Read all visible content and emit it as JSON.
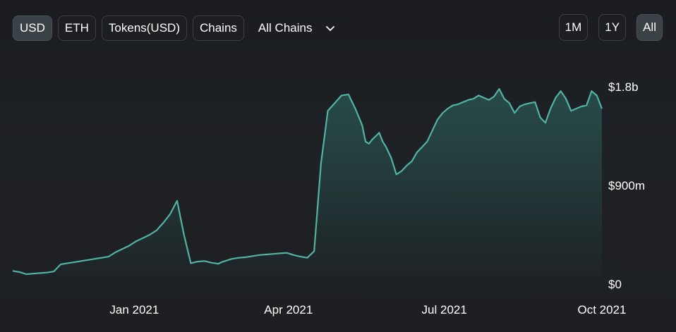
{
  "controls": {
    "currency_tabs": [
      {
        "label": "USD",
        "active": true
      },
      {
        "label": "ETH",
        "active": false
      },
      {
        "label": "Tokens(USD)",
        "active": false
      },
      {
        "label": "Chains",
        "active": false
      }
    ],
    "chain_select": {
      "selected": "All Chains",
      "icon": "chevron-down-icon"
    },
    "range_tabs": [
      {
        "label": "1M",
        "active": false
      },
      {
        "label": "1Y",
        "active": false
      },
      {
        "label": "All",
        "active": true
      }
    ]
  },
  "colors": {
    "line": "#52b3a4",
    "fill_top": "#2f6f68",
    "background": "#1b1d21"
  },
  "chart_data": {
    "type": "area",
    "title": "",
    "xlabel": "",
    "ylabel": "",
    "x_ticks": [
      {
        "date": "2021-01-01",
        "label": "Jan 2021"
      },
      {
        "date": "2021-04-01",
        "label": "Apr 2021"
      },
      {
        "date": "2021-07-01",
        "label": "Jul 2021"
      },
      {
        "date": "2021-10-01",
        "label": "Oct 2021"
      }
    ],
    "y_ticks": [
      {
        "value": 0,
        "label": "$0"
      },
      {
        "value": 900,
        "label": "$900m"
      },
      {
        "value": 1800,
        "label": "$1.8b"
      }
    ],
    "x_range": [
      "2020-10-22",
      "2021-10-01"
    ],
    "y_range": [
      0,
      1800
    ],
    "y_unit": "million USD",
    "grid": false,
    "legend": "none",
    "series": [
      {
        "x": [
          "2020-10-22",
          "2020-10-26",
          "2020-10-30",
          "2020-11-03",
          "2020-11-07",
          "2020-11-11",
          "2020-11-15",
          "2020-11-19",
          "2020-11-23",
          "2020-11-27",
          "2020-12-01",
          "2020-12-05",
          "2020-12-09",
          "2020-12-13",
          "2020-12-17",
          "2020-12-21",
          "2020-12-25",
          "2020-12-29",
          "2021-01-02",
          "2021-01-06",
          "2021-01-10",
          "2021-01-14",
          "2021-01-18",
          "2021-01-22",
          "2021-01-26",
          "2021-01-30",
          "2021-02-03",
          "2021-02-07",
          "2021-02-11",
          "2021-02-15",
          "2021-02-19",
          "2021-02-21",
          "2021-02-23",
          "2021-02-25",
          "2021-02-27",
          "2021-03-03",
          "2021-03-07",
          "2021-03-11",
          "2021-03-15",
          "2021-03-19",
          "2021-03-23",
          "2021-03-27",
          "2021-03-31",
          "2021-04-04",
          "2021-04-08",
          "2021-04-12",
          "2021-04-16",
          "2021-04-20",
          "2021-04-24",
          "2021-04-28",
          "2021-05-02",
          "2021-05-06",
          "2021-05-10",
          "2021-05-14",
          "2021-05-16",
          "2021-05-18",
          "2021-05-20",
          "2021-05-22",
          "2021-05-24",
          "2021-05-26",
          "2021-05-28",
          "2021-05-31",
          "2021-06-03",
          "2021-06-06",
          "2021-06-09",
          "2021-06-12",
          "2021-06-15",
          "2021-06-18",
          "2021-06-21",
          "2021-06-24",
          "2021-06-27",
          "2021-06-30",
          "2021-07-03",
          "2021-07-06",
          "2021-07-09",
          "2021-07-12",
          "2021-07-15",
          "2021-07-18",
          "2021-07-21",
          "2021-07-24",
          "2021-07-27",
          "2021-07-30",
          "2021-08-02",
          "2021-08-05",
          "2021-08-08",
          "2021-08-11",
          "2021-08-14",
          "2021-08-17",
          "2021-08-20",
          "2021-08-23",
          "2021-08-26",
          "2021-08-29",
          "2021-09-01",
          "2021-09-04",
          "2021-09-07",
          "2021-09-10",
          "2021-09-13",
          "2021-09-16",
          "2021-09-19",
          "2021-09-22",
          "2021-09-25",
          "2021-09-28",
          "2021-10-01"
        ],
        "values": [
          120,
          110,
          90,
          95,
          100,
          105,
          115,
          180,
          190,
          200,
          210,
          220,
          230,
          240,
          250,
          290,
          320,
          350,
          390,
          420,
          450,
          490,
          560,
          640,
          760,
          450,
          190,
          205,
          210,
          195,
          185,
          200,
          210,
          220,
          230,
          240,
          245,
          255,
          265,
          270,
          275,
          280,
          285,
          265,
          250,
          240,
          300,
          1100,
          1580,
          1650,
          1720,
          1730,
          1600,
          1450,
          1300,
          1280,
          1320,
          1350,
          1380,
          1300,
          1250,
          1150,
          1000,
          1030,
          1080,
          1120,
          1200,
          1250,
          1300,
          1400,
          1500,
          1560,
          1600,
          1630,
          1640,
          1660,
          1680,
          1690,
          1720,
          1700,
          1680,
          1710,
          1780,
          1690,
          1650,
          1560,
          1620,
          1640,
          1650,
          1660,
          1520,
          1470,
          1600,
          1700,
          1760,
          1690,
          1580,
          1600,
          1620,
          1630,
          1760,
          1720,
          1600
        ]
      }
    ]
  }
}
